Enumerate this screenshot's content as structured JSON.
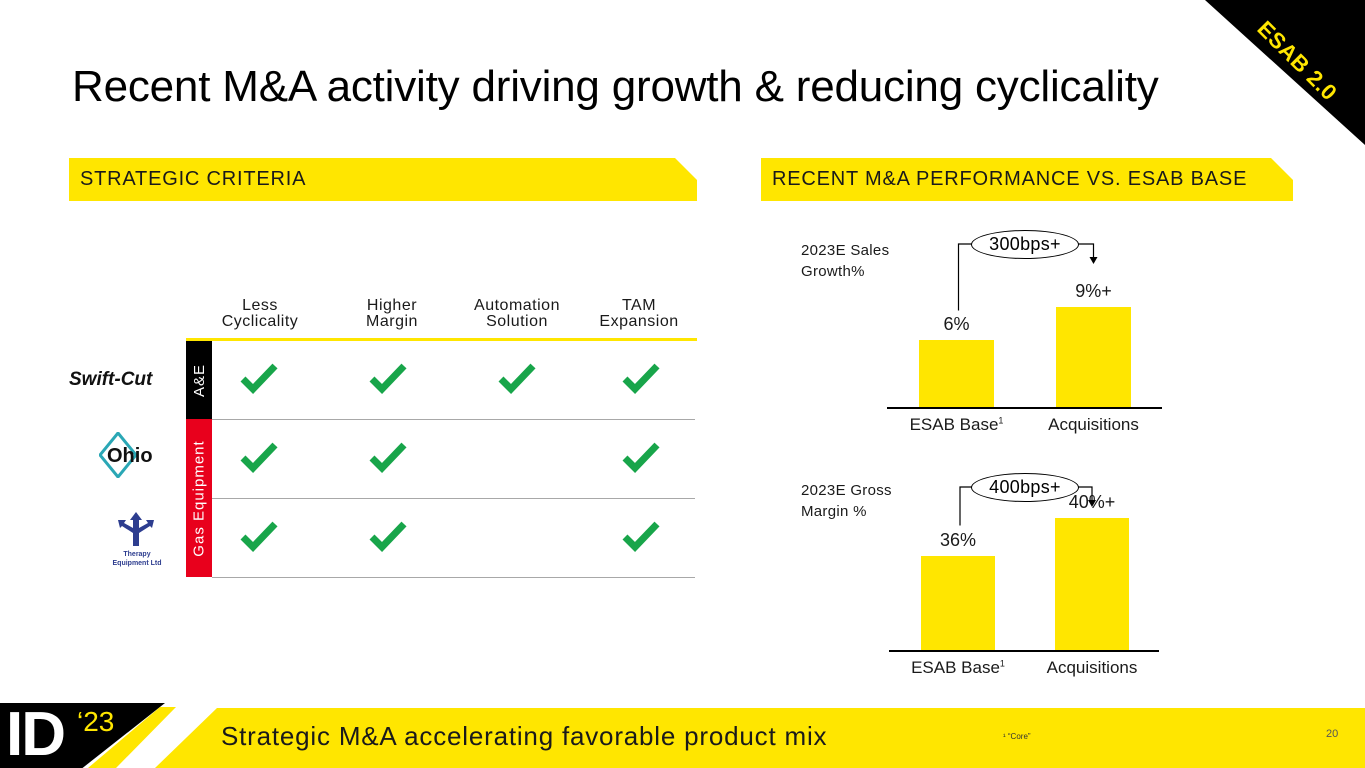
{
  "corner_badge": "ESAB 2.0",
  "title": "Recent M&A activity driving growth & reducing cyclicality",
  "banners": {
    "left": "STRATEGIC CRITERIA",
    "right": "RECENT M&A PERFORMANCE VS. ESAB BASE"
  },
  "criteria": {
    "columns": [
      {
        "line1": "Less",
        "line2": "Cyclicality"
      },
      {
        "line1": "Higher",
        "line2": "Margin"
      },
      {
        "line1": "Automation",
        "line2": "Solution"
      },
      {
        "line1": "TAM",
        "line2": "Expansion"
      }
    ],
    "segments": {
      "ae": "A&E",
      "gas": "Gas Equipment"
    },
    "rows": [
      {
        "company": "Swift-Cut",
        "checks": [
          true,
          true,
          true,
          true
        ]
      },
      {
        "company": "Ohio",
        "checks": [
          true,
          true,
          false,
          true
        ]
      },
      {
        "company": "Therapy Equipment Ltd",
        "checks": [
          true,
          true,
          false,
          true
        ]
      }
    ],
    "logos": {
      "swift": "Swift-Cut",
      "ohio": "Ohio",
      "therapy_line1": "Therapy",
      "therapy_line2": "Equipment Ltd"
    }
  },
  "chart_data": [
    {
      "type": "bar",
      "title": "2023E Sales Growth%",
      "title_line1": "2023E Sales",
      "title_line2": "Growth%",
      "categories": [
        "ESAB Base",
        "Acquisitions"
      ],
      "values": [
        6,
        9
      ],
      "value_labels": [
        "6%",
        "9%+"
      ],
      "category_footnote": "1",
      "callout": "300bps+",
      "ylim": [
        0,
        11
      ]
    },
    {
      "type": "bar",
      "title": "2023E Gross Margin %",
      "title_line1": "2023E Gross",
      "title_line2": "Margin %",
      "categories": [
        "ESAB Base",
        "Acquisitions"
      ],
      "values": [
        36,
        40
      ],
      "value_labels": [
        "36%",
        "40%+"
      ],
      "category_footnote": "1",
      "callout": "400bps+",
      "ylim": [
        26,
        44
      ]
    }
  ],
  "footer": {
    "event": "ID",
    "year": "‘23",
    "message": "Strategic M&A accelerating favorable product mix",
    "footnote": "¹ “Core”",
    "page": "20"
  },
  "colors": {
    "accent": "#FFE600",
    "check": "#18A54A",
    "segment_ae": "#000000",
    "segment_gas": "#E8001C"
  }
}
